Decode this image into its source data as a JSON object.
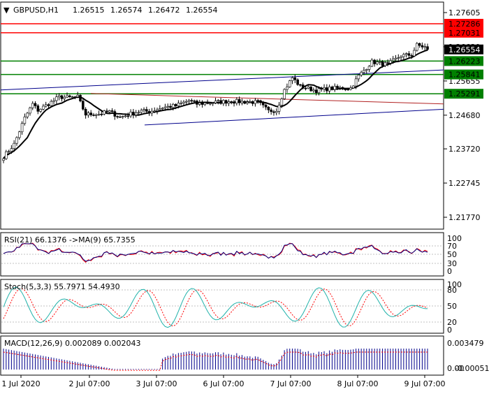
{
  "header": {
    "symbol_label": "GBPUSD,H1",
    "open": "1.26515",
    "high": "1.26574",
    "low": "1.26472",
    "close": "1.26554"
  },
  "main_panel": {
    "right_axis_ticks": [
      "1.27605",
      "1.26630",
      "1.25655",
      "1.24680",
      "1.23720",
      "1.22745",
      "1.21770"
    ],
    "price_badges": [
      {
        "label": "1.27286",
        "color": "#ff0000",
        "kind": "resistance"
      },
      {
        "label": "1.27031",
        "color": "#ff0000",
        "kind": "resistance"
      },
      {
        "label": "1.26554",
        "color": "#000000",
        "kind": "current"
      },
      {
        "label": "1.26223",
        "color": "#008000",
        "kind": "support"
      },
      {
        "label": "1.25841",
        "color": "#008000",
        "kind": "support"
      },
      {
        "label": "1.25291",
        "color": "#008000",
        "kind": "support"
      }
    ]
  },
  "rsi_panel": {
    "label": "RSI(21) 66.1376 ->MA(9) 65.7355",
    "ticks": [
      "100",
      "70",
      "50",
      "30",
      "0"
    ]
  },
  "stoch_panel": {
    "label": "Stoch(5,3,3) 55.7971 54.4930",
    "ticks": [
      "100",
      "80",
      "50",
      "20",
      "0"
    ]
  },
  "macd_panel": {
    "label": "MACD(12,26,9) 0.002089 0.002043",
    "ticks": [
      "0.003479",
      "0.00",
      "-0.000517"
    ]
  },
  "time_axis": {
    "labels": [
      "1 Jul 2020",
      "2 Jul 07:00",
      "3 Jul 07:00",
      "6 Jul 07:00",
      "7 Jul 07:00",
      "8 Jul 07:00",
      "9 Jul 07:00"
    ]
  },
  "colors": {
    "resistance": "#ff0000",
    "support": "#008000",
    "channel": "#00008b",
    "ma_line": "#000000",
    "rsi_line": "#000080",
    "stoch_main": "#20b2aa",
    "stoch_signal": "#ff0000",
    "macd_bars": "#00008b",
    "macd_signal": "#ff0000"
  },
  "chart_data": {
    "type": "candlestick",
    "symbol": "GBPUSD",
    "timeframe": "H1",
    "ylim": [
      1.213,
      1.2815
    ],
    "levels": {
      "resistance": [
        1.27286,
        1.27031
      ],
      "support": [
        1.26223,
        1.25841,
        1.25291
      ],
      "current": 1.26554
    },
    "close_keypoints": [
      [
        0,
        1.235
      ],
      [
        4,
        1.2385
      ],
      [
        8,
        1.246
      ],
      [
        11,
        1.25
      ],
      [
        13,
        1.2482
      ],
      [
        18,
        1.2505
      ],
      [
        21,
        1.252
      ],
      [
        25,
        1.2518
      ],
      [
        28,
        1.252
      ],
      [
        31,
        1.247
      ],
      [
        36,
        1.2472
      ],
      [
        40,
        1.2478
      ],
      [
        44,
        1.2462
      ],
      [
        48,
        1.2472
      ],
      [
        52,
        1.248
      ],
      [
        55,
        1.2478
      ],
      [
        60,
        1.249
      ],
      [
        65,
        1.2495
      ],
      [
        70,
        1.251
      ],
      [
        73,
        1.25
      ],
      [
        80,
        1.2505
      ],
      [
        86,
        1.2508
      ],
      [
        90,
        1.2506
      ],
      [
        96,
        1.2505
      ],
      [
        100,
        1.248
      ],
      [
        103,
        1.2482
      ],
      [
        106,
        1.254
      ],
      [
        109,
        1.2575
      ],
      [
        112,
        1.255
      ],
      [
        118,
        1.2538
      ],
      [
        124,
        1.2545
      ],
      [
        128,
        1.2545
      ],
      [
        131,
        1.2545
      ],
      [
        134,
        1.258
      ],
      [
        139,
        1.262
      ],
      [
        145,
        1.2612
      ],
      [
        150,
        1.2638
      ],
      [
        154,
        1.264
      ],
      [
        156,
        1.2668
      ],
      [
        160,
        1.266
      ]
    ],
    "candle_count": 161
  }
}
